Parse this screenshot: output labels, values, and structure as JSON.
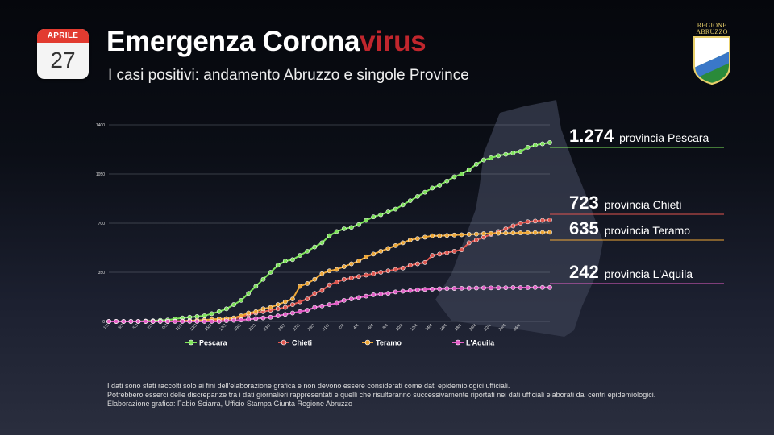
{
  "calendar": {
    "month": "APRILE",
    "day": "27"
  },
  "header": {
    "title_main": "Emergenza Corona",
    "title_accent": "virus",
    "subtitle": "I casi positivi: andamento Abruzzo e singole Province"
  },
  "logo": {
    "line1": "REGIONE",
    "line2": "ABRUZZO"
  },
  "footnote": {
    "line1": "I dati sono stati raccolti solo ai fini dell'elaborazione grafica e non devono essere considerati come dati epidemiologici ufficiali.",
    "line2": "Potrebbero esserci delle discrepanze tra i dati giornalieri rappresentati e quelli che risulteranno successivamente riportati nei dati ufficiali elaborati dai centri epidemiologici.",
    "line3": "Elaborazione grafica: Fabio Sciarra, Ufficio Stampa Giunta Regione Abruzzo"
  },
  "colors": {
    "pescara": "#7ee55a",
    "chieti": "#e0554e",
    "teramo": "#f0a836",
    "laquila": "#e45ec8",
    "accent": "#c0262d"
  },
  "chart_data": {
    "type": "line",
    "title": "",
    "xlabel": "",
    "ylabel": "",
    "ylim": [
      0,
      1400
    ],
    "yticks": [
      0,
      350,
      700,
      1050,
      1400
    ],
    "xtick_labels": [
      "1/3",
      "3/3",
      "5/3",
      "7/3",
      "9/3",
      "11/3",
      "13/3",
      "15/3",
      "17/3",
      "19/3",
      "21/3",
      "23/3",
      "25/3",
      "27/3",
      "29/3",
      "31/3",
      "2/4",
      "4/4",
      "6/4",
      "8/4",
      "10/4",
      "12/4",
      "14/4",
      "16/4",
      "18/4",
      "20/4",
      "22/4",
      "24/4",
      "26/4"
    ],
    "legend_position": "bottom",
    "series": [
      {
        "name": "Pescara",
        "final_label": "1.274",
        "end_text": "provincia Pescara",
        "values": [
          0,
          0,
          0,
          0,
          0,
          3,
          5,
          8,
          10,
          18,
          25,
          30,
          35,
          40,
          55,
          70,
          90,
          120,
          150,
          200,
          250,
          300,
          350,
          400,
          430,
          440,
          470,
          500,
          530,
          560,
          610,
          640,
          660,
          670,
          690,
          720,
          745,
          760,
          780,
          800,
          830,
          860,
          890,
          920,
          950,
          970,
          1000,
          1030,
          1050,
          1080,
          1120,
          1150,
          1165,
          1180,
          1190,
          1200,
          1210,
          1240,
          1255,
          1265,
          1274
        ]
      },
      {
        "name": "Chieti",
        "final_label": "723",
        "end_text": "provincia Chieti",
        "values": [
          0,
          0,
          0,
          0,
          0,
          0,
          0,
          0,
          0,
          2,
          3,
          5,
          5,
          7,
          10,
          12,
          15,
          20,
          30,
          50,
          60,
          70,
          80,
          90,
          100,
          120,
          140,
          160,
          200,
          220,
          260,
          280,
          300,
          310,
          320,
          330,
          340,
          350,
          360,
          370,
          380,
          400,
          410,
          420,
          470,
          480,
          490,
          500,
          510,
          560,
          580,
          600,
          620,
          640,
          660,
          680,
          700,
          710,
          715,
          720,
          723
        ]
      },
      {
        "name": "Teramo",
        "final_label": "635",
        "end_text": "provincia Teramo",
        "values": [
          0,
          0,
          0,
          0,
          0,
          0,
          0,
          0,
          0,
          2,
          3,
          5,
          8,
          10,
          15,
          18,
          20,
          25,
          40,
          60,
          70,
          90,
          100,
          120,
          140,
          160,
          250,
          270,
          300,
          340,
          360,
          370,
          390,
          410,
          430,
          460,
          480,
          500,
          520,
          540,
          560,
          580,
          590,
          600,
          610,
          610,
          612,
          615,
          617,
          620,
          622,
          625,
          627,
          628,
          629,
          630,
          631,
          632,
          633,
          634,
          635
        ]
      },
      {
        "name": "L'Aquila",
        "final_label": "242",
        "end_text": "provincia L'Aquila",
        "values": [
          0,
          0,
          0,
          0,
          0,
          0,
          0,
          0,
          0,
          0,
          0,
          0,
          0,
          0,
          0,
          0,
          5,
          8,
          10,
          15,
          20,
          25,
          30,
          40,
          50,
          60,
          70,
          80,
          100,
          110,
          120,
          130,
          150,
          160,
          170,
          180,
          190,
          195,
          200,
          210,
          215,
          220,
          225,
          228,
          230,
          232,
          234,
          235,
          236,
          237,
          238,
          239,
          239,
          240,
          240,
          241,
          241,
          241,
          242,
          242,
          242
        ]
      }
    ]
  }
}
